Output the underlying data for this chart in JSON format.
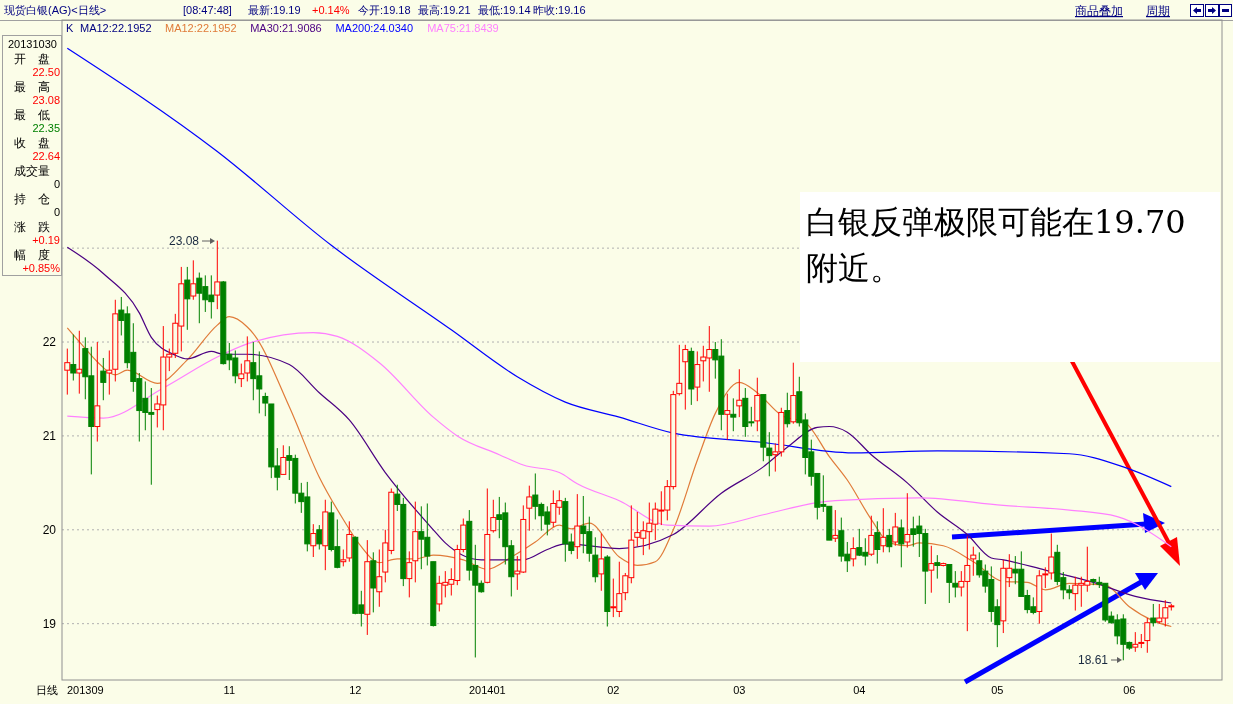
{
  "chart_data": {
    "type": "candlestick",
    "title": "现货白银(AG)<日线>",
    "xlabel": "日线",
    "categories": [
      null,
      null,
      null,
      "201309",
      null,
      null,
      null,
      null,
      null,
      null,
      null,
      null,
      null,
      null,
      null,
      null,
      null,
      null,
      null,
      null,
      null,
      null,
      null,
      null,
      null,
      null,
      null,
      "11",
      null,
      null,
      null,
      null,
      null,
      null,
      null,
      null,
      null,
      null,
      null,
      null,
      null,
      null,
      null,
      null,
      null,
      null,
      null,
      null,
      "12",
      null,
      null,
      null,
      null,
      null,
      null,
      null,
      null,
      null,
      null,
      null,
      null,
      null,
      null,
      null,
      null,
      null,
      null,
      null,
      null,
      null,
      "201401",
      null,
      null,
      null,
      null,
      null,
      null,
      null,
      null,
      null,
      null,
      null,
      null,
      null,
      null,
      null,
      null,
      null,
      null,
      null,
      null,
      "02",
      null,
      null,
      null,
      null,
      null,
      null,
      null,
      null,
      null,
      null,
      null,
      null,
      null,
      null,
      null,
      null,
      null,
      null,
      null,
      null,
      "03",
      null,
      null,
      null,
      null,
      null,
      null,
      null,
      null,
      null,
      null,
      null,
      null,
      null,
      null,
      null,
      null,
      null,
      null,
      null,
      "04",
      null,
      null,
      null,
      null,
      null,
      null,
      null,
      null,
      null,
      null,
      null,
      null,
      null,
      null,
      null,
      null,
      null,
      null,
      null,
      null,
      null,
      null,
      "05",
      null,
      null,
      null,
      null,
      null,
      null,
      null,
      null,
      null,
      null,
      null,
      null,
      null,
      null,
      null,
      null,
      null,
      null,
      null,
      null,
      null,
      "06",
      null,
      null,
      null,
      null,
      null,
      null,
      null
    ],
    "ohlc": [
      [
        21.7,
        21.93,
        21.44,
        21.78
      ],
      [
        21.76,
        22.08,
        21.59,
        21.67
      ],
      [
        21.67,
        22.12,
        21.45,
        21.71
      ],
      [
        21.93,
        22.05,
        21.39,
        21.63
      ],
      [
        21.64,
        21.95,
        20.59,
        21.1
      ],
      [
        21.1,
        22.0,
        20.94,
        21.32
      ],
      [
        21.69,
        21.83,
        21.38,
        21.57
      ],
      [
        21.67,
        21.91,
        21.44,
        21.7
      ],
      [
        21.71,
        22.45,
        21.58,
        22.3
      ],
      [
        22.34,
        22.48,
        22.07,
        22.23
      ],
      [
        22.3,
        22.38,
        21.72,
        21.78
      ],
      [
        21.89,
        22.2,
        21.47,
        21.58
      ],
      [
        21.61,
        21.67,
        20.94,
        21.27
      ],
      [
        21.4,
        21.58,
        21.06,
        21.25
      ],
      [
        21.25,
        21.51,
        20.48,
        21.23
      ],
      [
        21.28,
        21.43,
        21.09,
        21.34
      ],
      [
        21.33,
        22.17,
        21.06,
        21.84
      ],
      [
        21.84,
        21.93,
        21.69,
        21.87
      ],
      [
        21.88,
        22.3,
        21.83,
        22.2
      ],
      [
        22.17,
        22.8,
        21.9,
        22.62
      ],
      [
        22.66,
        22.8,
        22.13,
        22.46
      ],
      [
        22.49,
        22.87,
        22.45,
        22.62
      ],
      [
        22.68,
        22.74,
        22.2,
        22.52
      ],
      [
        22.59,
        22.71,
        22.32,
        22.45
      ],
      [
        22.5,
        22.71,
        22.25,
        22.43
      ],
      [
        22.5,
        23.08,
        22.35,
        22.64
      ],
      [
        22.64,
        22.65,
        21.76,
        21.77
      ],
      [
        21.87,
        21.99,
        21.7,
        21.81
      ],
      [
        21.83,
        21.91,
        21.56,
        21.64
      ],
      [
        21.61,
        21.77,
        21.52,
        21.66
      ],
      [
        21.67,
        22.06,
        21.58,
        21.8
      ],
      [
        21.78,
        22.0,
        21.38,
        21.61
      ],
      [
        21.64,
        21.9,
        21.24,
        21.5
      ],
      [
        21.42,
        21.46,
        21.21,
        21.35
      ],
      [
        21.34,
        21.34,
        20.55,
        20.67
      ],
      [
        20.68,
        20.87,
        20.42,
        20.56
      ],
      [
        20.59,
        20.9,
        20.59,
        20.77
      ],
      [
        20.79,
        20.89,
        20.53,
        20.74
      ],
      [
        20.76,
        20.8,
        20.28,
        20.39
      ],
      [
        20.39,
        20.5,
        20.18,
        20.3
      ],
      [
        20.35,
        20.51,
        19.77,
        19.85
      ],
      [
        19.83,
        20.06,
        19.71,
        19.96
      ],
      [
        20.0,
        20.05,
        19.79,
        19.85
      ],
      [
        19.83,
        20.32,
        19.57,
        20.19
      ],
      [
        20.18,
        20.3,
        19.77,
        19.79
      ],
      [
        19.82,
        20.11,
        19.59,
        19.6
      ],
      [
        19.66,
        19.79,
        19.61,
        19.68
      ],
      [
        19.7,
        20.09,
        19.66,
        19.95
      ],
      [
        19.92,
        19.93,
        19.1,
        19.11
      ],
      [
        19.2,
        19.35,
        18.97,
        19.11
      ],
      [
        19.1,
        19.89,
        18.88,
        19.66
      ],
      [
        19.67,
        19.76,
        19.12,
        19.38
      ],
      [
        19.34,
        19.79,
        19.18,
        19.5
      ],
      [
        19.55,
        20.0,
        19.44,
        19.86
      ],
      [
        19.78,
        20.44,
        19.74,
        20.4
      ],
      [
        20.38,
        20.48,
        20.2,
        20.27
      ],
      [
        20.27,
        20.34,
        19.4,
        19.48
      ],
      [
        19.48,
        19.77,
        19.28,
        19.65
      ],
      [
        19.67,
        20.3,
        19.44,
        19.98
      ],
      [
        19.98,
        20.25,
        19.58,
        19.9
      ],
      [
        19.92,
        20.28,
        19.62,
        19.72
      ],
      [
        19.66,
        19.66,
        18.97,
        18.98
      ],
      [
        19.21,
        19.51,
        19.13,
        19.43
      ],
      [
        19.41,
        19.56,
        19.28,
        19.44
      ],
      [
        19.42,
        19.59,
        19.3,
        19.47
      ],
      [
        19.46,
        19.84,
        19.41,
        19.79
      ],
      [
        19.79,
        20.12,
        19.76,
        20.05
      ],
      [
        20.09,
        20.21,
        19.46,
        19.57
      ],
      [
        19.62,
        19.84,
        18.64,
        19.41
      ],
      [
        19.43,
        19.46,
        19.33,
        19.34
      ],
      [
        19.44,
        20.44,
        19.43,
        19.95
      ],
      [
        19.99,
        20.32,
        19.97,
        20.13
      ],
      [
        20.16,
        20.35,
        19.91,
        20.11
      ],
      [
        20.18,
        20.29,
        19.63,
        19.82
      ],
      [
        19.83,
        19.89,
        19.29,
        19.5
      ],
      [
        19.53,
        19.72,
        19.36,
        19.56
      ],
      [
        19.55,
        20.26,
        19.54,
        20.11
      ],
      [
        20.23,
        20.47,
        19.99,
        20.35
      ],
      [
        20.37,
        20.6,
        20.11,
        20.25
      ],
      [
        20.27,
        20.29,
        19.99,
        20.15
      ],
      [
        20.19,
        20.25,
        19.94,
        20.06
      ],
      [
        20.08,
        20.42,
        20.03,
        20.28
      ],
      [
        20.24,
        20.42,
        20.16,
        20.31
      ],
      [
        20.3,
        20.34,
        19.66,
        19.85
      ],
      [
        19.87,
        19.96,
        19.74,
        19.78
      ],
      [
        19.82,
        20.38,
        19.69,
        20.04
      ],
      [
        20.04,
        20.36,
        19.75,
        19.96
      ],
      [
        19.98,
        20.14,
        19.66,
        19.75
      ],
      [
        19.73,
        19.92,
        19.44,
        19.5
      ],
      [
        19.53,
        19.96,
        19.35,
        19.69
      ],
      [
        19.71,
        19.73,
        18.97,
        19.13
      ],
      [
        19.17,
        19.48,
        19.07,
        19.18
      ],
      [
        19.13,
        19.66,
        19.07,
        19.32
      ],
      [
        19.33,
        19.54,
        19.25,
        19.51
      ],
      [
        19.49,
        20.26,
        19.43,
        19.89
      ],
      [
        19.92,
        20.19,
        19.82,
        19.97
      ],
      [
        19.91,
        20.09,
        19.73,
        19.99
      ],
      [
        19.98,
        20.29,
        19.79,
        20.07
      ],
      [
        20.06,
        20.29,
        19.89,
        20.22
      ],
      [
        20.2,
        20.41,
        20.05,
        20.21
      ],
      [
        20.21,
        20.53,
        20.1,
        20.46
      ],
      [
        20.46,
        21.48,
        20.43,
        21.44
      ],
      [
        21.45,
        21.97,
        21.43,
        21.56
      ],
      [
        21.79,
        21.97,
        21.28,
        21.92
      ],
      [
        21.9,
        21.94,
        21.33,
        21.5
      ],
      [
        21.52,
        21.9,
        21.37,
        21.76
      ],
      [
        21.8,
        21.96,
        21.58,
        21.84
      ],
      [
        21.83,
        22.17,
        21.47,
        21.92
      ],
      [
        21.92,
        22.0,
        21.61,
        21.81
      ],
      [
        21.85,
        22.03,
        21.06,
        21.23
      ],
      [
        21.23,
        21.45,
        20.96,
        21.27
      ],
      [
        21.23,
        21.4,
        21.05,
        21.2
      ],
      [
        21.32,
        21.71,
        21.2,
        21.38
      ],
      [
        21.4,
        21.51,
        20.99,
        21.1
      ],
      [
        21.15,
        21.31,
        21.1,
        21.14
      ],
      [
        21.16,
        21.62,
        21.05,
        21.43
      ],
      [
        21.44,
        21.44,
        20.73,
        20.88
      ],
      [
        20.87,
        21.04,
        20.57,
        20.79
      ],
      [
        20.8,
        20.92,
        20.62,
        20.83
      ],
      [
        20.83,
        21.3,
        20.78,
        21.25
      ],
      [
        21.27,
        21.46,
        21.09,
        21.13
      ],
      [
        21.15,
        21.78,
        21.13,
        21.43
      ],
      [
        21.47,
        21.63,
        21.1,
        21.14
      ],
      [
        21.17,
        21.24,
        20.59,
        20.77
      ],
      [
        20.83,
        20.96,
        20.47,
        20.57
      ],
      [
        20.6,
        20.6,
        20.11,
        20.24
      ],
      [
        20.27,
        20.58,
        20.19,
        20.25
      ],
      [
        20.25,
        20.25,
        19.89,
        19.89
      ],
      [
        19.91,
        20.21,
        19.87,
        19.94
      ],
      [
        19.99,
        20.13,
        19.66,
        19.72
      ],
      [
        19.74,
        19.87,
        19.55,
        19.67
      ],
      [
        19.69,
        19.92,
        19.61,
        19.8
      ],
      [
        19.81,
        20.01,
        19.72,
        19.73
      ],
      [
        19.76,
        19.91,
        19.62,
        19.72
      ],
      [
        19.74,
        20.15,
        19.72,
        19.94
      ],
      [
        19.97,
        20.09,
        19.64,
        19.79
      ],
      [
        19.83,
        20.23,
        19.76,
        19.92
      ],
      [
        19.94,
        20.01,
        19.76,
        19.82
      ],
      [
        19.87,
        20.18,
        19.83,
        20.03
      ],
      [
        20.02,
        20.11,
        19.6,
        19.85
      ],
      [
        19.87,
        20.39,
        19.81,
        19.95
      ],
      [
        20.01,
        20.14,
        19.82,
        19.95
      ],
      [
        20.04,
        20.15,
        19.71,
        19.96
      ],
      [
        19.96,
        20.01,
        19.21,
        19.56
      ],
      [
        19.57,
        19.83,
        19.33,
        19.64
      ],
      [
        19.65,
        19.73,
        19.48,
        19.62
      ],
      [
        19.62,
        19.65,
        19.61,
        19.64
      ],
      [
        19.63,
        19.63,
        19.22,
        19.44
      ],
      [
        19.43,
        19.56,
        19.28,
        19.39
      ],
      [
        19.39,
        19.56,
        19.29,
        19.45
      ],
      [
        19.45,
        19.93,
        18.92,
        19.62
      ],
      [
        19.69,
        19.82,
        19.51,
        19.73
      ],
      [
        19.67,
        19.76,
        19.49,
        19.52
      ],
      [
        19.56,
        19.63,
        19.33,
        19.4
      ],
      [
        19.47,
        19.61,
        19.02,
        19.13
      ],
      [
        19.18,
        19.26,
        18.75,
        18.99
      ],
      [
        19.03,
        19.68,
        18.9,
        19.59
      ],
      [
        19.49,
        19.74,
        19.39,
        19.59
      ],
      [
        19.58,
        19.72,
        19.42,
        19.54
      ],
      [
        19.58,
        19.77,
        19.29,
        19.29
      ],
      [
        19.3,
        19.36,
        19.11,
        19.15
      ],
      [
        19.18,
        19.28,
        19.1,
        19.12
      ],
      [
        19.13,
        19.57,
        19.0,
        19.51
      ],
      [
        19.52,
        19.6,
        19.38,
        19.53
      ],
      [
        19.54,
        19.96,
        19.47,
        19.71
      ],
      [
        19.76,
        19.84,
        19.41,
        19.45
      ],
      [
        19.49,
        19.55,
        19.26,
        19.36
      ],
      [
        19.36,
        19.41,
        19.26,
        19.33
      ],
      [
        19.32,
        19.5,
        19.14,
        19.41
      ],
      [
        19.41,
        19.5,
        19.18,
        19.43
      ],
      [
        19.41,
        19.82,
        19.34,
        19.45
      ],
      [
        19.47,
        19.48,
        19.41,
        19.45
      ],
      [
        19.44,
        19.5,
        19.38,
        19.42
      ],
      [
        19.43,
        19.43,
        19.02,
        19.04
      ],
      [
        19.08,
        19.13,
        19.0,
        19.01
      ],
      [
        19.04,
        19.1,
        18.78,
        18.87
      ],
      [
        19.05,
        19.1,
        18.61,
        18.78
      ],
      [
        18.8,
        18.81,
        18.72,
        18.74
      ],
      [
        18.75,
        18.91,
        18.7,
        18.78
      ],
      [
        18.79,
        18.89,
        18.74,
        18.8
      ],
      [
        18.82,
        19.06,
        18.69,
        19.01
      ],
      [
        19.06,
        19.21,
        18.97,
        19.01
      ],
      [
        19.02,
        19.21,
        19.0,
        19.06
      ],
      [
        19.06,
        19.25,
        18.97,
        19.17
      ],
      [
        19.18,
        19.21,
        19.14,
        19.19
      ]
    ],
    "series": [
      {
        "type": "line",
        "name": "MA12:22.1952",
        "color": "#e07b39",
        "values": [
          22.15,
          null,
          null,
          21.93,
          null,
          21.79,
          null,
          null,
          21.65,
          null,
          21.7,
          null,
          null,
          null,
          null,
          21.56,
          null,
          null,
          null,
          null,
          21.81,
          null,
          null,
          null,
          null,
          22.18,
          null,
          22.27,
          null,
          null,
          22.16,
          22.09,
          null,
          null,
          null,
          null,
          null,
          21.31,
          null,
          null,
          null,
          null,
          20.56,
          null,
          null,
          null,
          20.11,
          null,
          null,
          19.82,
          null,
          null,
          19.65,
          null,
          null,
          19.69,
          null,
          null,
          19.69,
          null,
          null,
          19.73,
          null,
          null,
          null,
          null,
          19.68,
          null,
          null,
          null,
          19.58,
          null,
          null,
          null,
          19.71,
          null,
          null,
          null,
          19.87,
          null,
          null,
          null,
          20.05,
          null,
          20.01,
          null,
          null,
          20.07,
          null,
          null,
          null,
          null,
          19.71,
          null,
          null,
          19.62,
          null,
          null,
          19.66,
          null,
          null,
          20.0,
          null,
          null,
          null,
          20.74,
          null,
          null,
          21.24,
          null,
          null,
          null,
          21.57,
          null,
          null,
          21.46,
          null,
          null,
          null,
          21.22,
          null,
          null,
          null,
          21.14,
          null,
          null,
          null,
          20.78,
          null,
          null,
          20.53,
          null,
          null,
          null,
          20.11,
          null,
          null,
          19.86,
          null,
          null,
          19.83,
          null,
          19.86,
          null,
          null,
          null,
          19.83,
          null,
          null,
          null,
          null,
          19.66,
          null,
          null,
          null,
          null,
          19.45,
          null,
          null,
          null,
          19.44,
          null,
          null,
          19.36,
          null,
          null,
          null,
          19.43,
          null,
          null,
          null,
          null,
          null,
          19.41,
          null,
          null,
          null,
          19.18,
          null,
          null,
          null,
          19.03,
          null,
          null,
          18.97
        ]
      },
      {
        "type": "line",
        "name": "MA30:21.9086",
        "color": "#4b0082",
        "values": [
          23.01,
          null,
          null,
          null,
          null,
          null,
          22.73,
          null,
          null,
          null,
          null,
          null,
          22.31,
          null,
          22.05,
          null,
          null,
          null,
          21.86,
          null,
          21.82,
          null,
          null,
          null,
          21.9,
          null,
          21.87,
          null,
          null,
          null,
          21.87,
          null,
          null,
          null,
          null,
          null,
          null,
          21.76,
          null,
          null,
          null,
          null,
          21.46,
          null,
          null,
          null,
          null,
          21.17,
          null,
          null,
          null,
          null,
          null,
          20.61,
          null,
          null,
          null,
          null,
          null,
          null,
          null,
          20.0,
          null,
          19.86,
          null,
          null,
          null,
          null,
          null,
          19.68,
          null,
          null,
          null,
          null,
          null,
          null,
          19.68,
          null,
          null,
          null,
          19.79,
          null,
          null,
          19.85,
          null,
          null,
          null,
          null,
          null,
          null,
          null,
          null,
          19.8,
          null,
          null,
          null,
          null,
          null,
          null,
          null,
          null,
          19.95,
          null,
          null,
          null,
          null,
          null,
          null,
          null,
          20.39,
          null,
          null,
          null,
          null,
          null,
          null,
          20.67,
          null,
          null,
          null,
          20.88,
          null,
          null,
          null,
          null,
          21.09,
          null,
          21.1,
          null,
          null,
          21.04,
          null,
          null,
          null,
          20.8,
          null,
          null,
          null,
          null,
          null,
          20.5,
          null,
          null,
          null,
          null,
          20.19,
          null,
          null,
          null,
          null,
          19.95,
          null,
          null,
          null,
          19.7,
          null,
          19.68,
          null,
          null,
          null,
          null,
          null,
          null,
          19.57,
          null,
          null,
          null,
          null,
          null,
          null,
          null,
          19.44,
          null,
          null,
          null,
          null,
          null,
          null,
          19.29,
          null,
          null,
          null,
          null,
          null,
          19.22
        ]
      },
      {
        "type": "line",
        "name": "MA200:24.0340",
        "color": "#0000ff",
        "values": [
          25.13,
          null,
          null,
          null,
          null,
          null,
          null,
          null,
          null,
          null,
          null,
          null,
          null,
          null,
          null,
          null,
          null,
          null,
          null,
          null,
          null,
          null,
          null,
          null,
          null,
          24.03,
          null,
          null,
          null,
          null,
          null,
          null,
          null,
          null,
          null,
          null,
          null,
          null,
          null,
          null,
          null,
          null,
          null,
          null,
          23.03,
          null,
          null,
          null,
          null,
          null,
          null,
          null,
          null,
          null,
          null,
          null,
          null,
          null,
          null,
          null,
          null,
          null,
          null,
          null,
          22.13,
          null,
          null,
          null,
          null,
          null,
          null,
          null,
          null,
          null,
          null,
          21.63,
          null,
          null,
          null,
          null,
          null,
          null,
          null,
          21.36,
          null,
          null,
          null,
          null,
          null,
          null,
          null,
          null,
          21.2,
          null,
          null,
          null,
          null,
          null,
          null,
          null,
          null,
          21.03,
          null,
          null,
          null,
          null,
          null,
          null,
          null,
          null,
          null,
          null,
          null,
          null,
          null,
          null,
          20.93,
          null,
          null,
          null,
          null,
          null,
          null,
          null,
          null,
          null,
          null,
          null,
          null,
          null,
          null,
          20.82,
          null,
          null,
          null,
          null,
          null,
          null,
          null,
          null,
          null,
          null,
          null,
          null,
          null,
          20.84,
          null,
          null,
          null,
          null,
          null,
          null,
          null,
          null,
          null,
          null,
          null,
          null,
          null,
          null,
          null,
          null,
          null,
          null,
          null,
          null,
          null,
          20.81,
          null,
          null,
          null,
          null,
          null,
          null,
          null,
          null,
          20.67,
          null,
          null,
          null,
          null,
          null,
          null,
          null,
          20.46
        ]
      },
      {
        "type": "line",
        "name": "MA75:21.8439",
        "color": "#ff80ff",
        "values": [
          21.21,
          null,
          null,
          null,
          null,
          null,
          21.19,
          null,
          null,
          null,
          null,
          null,
          null,
          null,
          null,
          null,
          21.51,
          null,
          null,
          null,
          null,
          null,
          null,
          null,
          null,
          21.84,
          null,
          null,
          null,
          null,
          21.98,
          null,
          null,
          null,
          null,
          null,
          null,
          null,
          null,
          null,
          null,
          22.1,
          null,
          null,
          null,
          22.06,
          null,
          null,
          null,
          null,
          null,
          null,
          21.78,
          null,
          null,
          null,
          null,
          null,
          null,
          null,
          null,
          21.2,
          null,
          null,
          null,
          21.0,
          null,
          null,
          null,
          null,
          null,
          null,
          20.8,
          null,
          null,
          null,
          20.69,
          null,
          null,
          null,
          null,
          null,
          20.61,
          null,
          null,
          20.49,
          null,
          null,
          null,
          null,
          null,
          null,
          20.31,
          null,
          null,
          null,
          null,
          null,
          null,
          null,
          20.05,
          null,
          null,
          null,
          null,
          null,
          null,
          20.04,
          null,
          null,
          null,
          null,
          null,
          null,
          null,
          null,
          20.16,
          null,
          null,
          null,
          null,
          null,
          null,
          null,
          null,
          20.29,
          null,
          null,
          20.31,
          null,
          null,
          null,
          null,
          null,
          null,
          null,
          null,
          null,
          null,
          null,
          null,
          null,
          20.34,
          null,
          null,
          null,
          null,
          null,
          null,
          null,
          null,
          null,
          null,
          null,
          null,
          null,
          20.26,
          null,
          null,
          null,
          null,
          null,
          null,
          null,
          null,
          null,
          null,
          20.21,
          null,
          null,
          null,
          null,
          null,
          null,
          null,
          20.14,
          null,
          null,
          null,
          null,
          null,
          null,
          null,
          null,
          19.82
        ]
      }
    ],
    "ylim": [
      18.4,
      25.43
    ],
    "yticks": [
      19,
      20,
      21,
      22,
      {
        "value": 23,
        "label": null
      }
    ],
    "grid": "y",
    "legend": "top left",
    "annotations": [
      "[08:47:48]",
      "最新:19.19",
      "+0.14%",
      "今开:19.18",
      "最高:19.21",
      "最低:19.14",
      "昨收:19.16",
      "商品叠加",
      "周期",
      "K",
      "MA12:22.1952",
      "20131030",
      "开　盘",
      "22.50",
      "最　高",
      "23.08",
      "最　低",
      "22.35",
      "收　盘",
      "22.64",
      "成交量",
      "0",
      "持　仓",
      "0",
      "涨　跌",
      "+0.19",
      "幅　度",
      "+0.85%",
      "白银反弹极限可能在19.70附近。",
      "23.08",
      "18.61"
    ]
  }
}
